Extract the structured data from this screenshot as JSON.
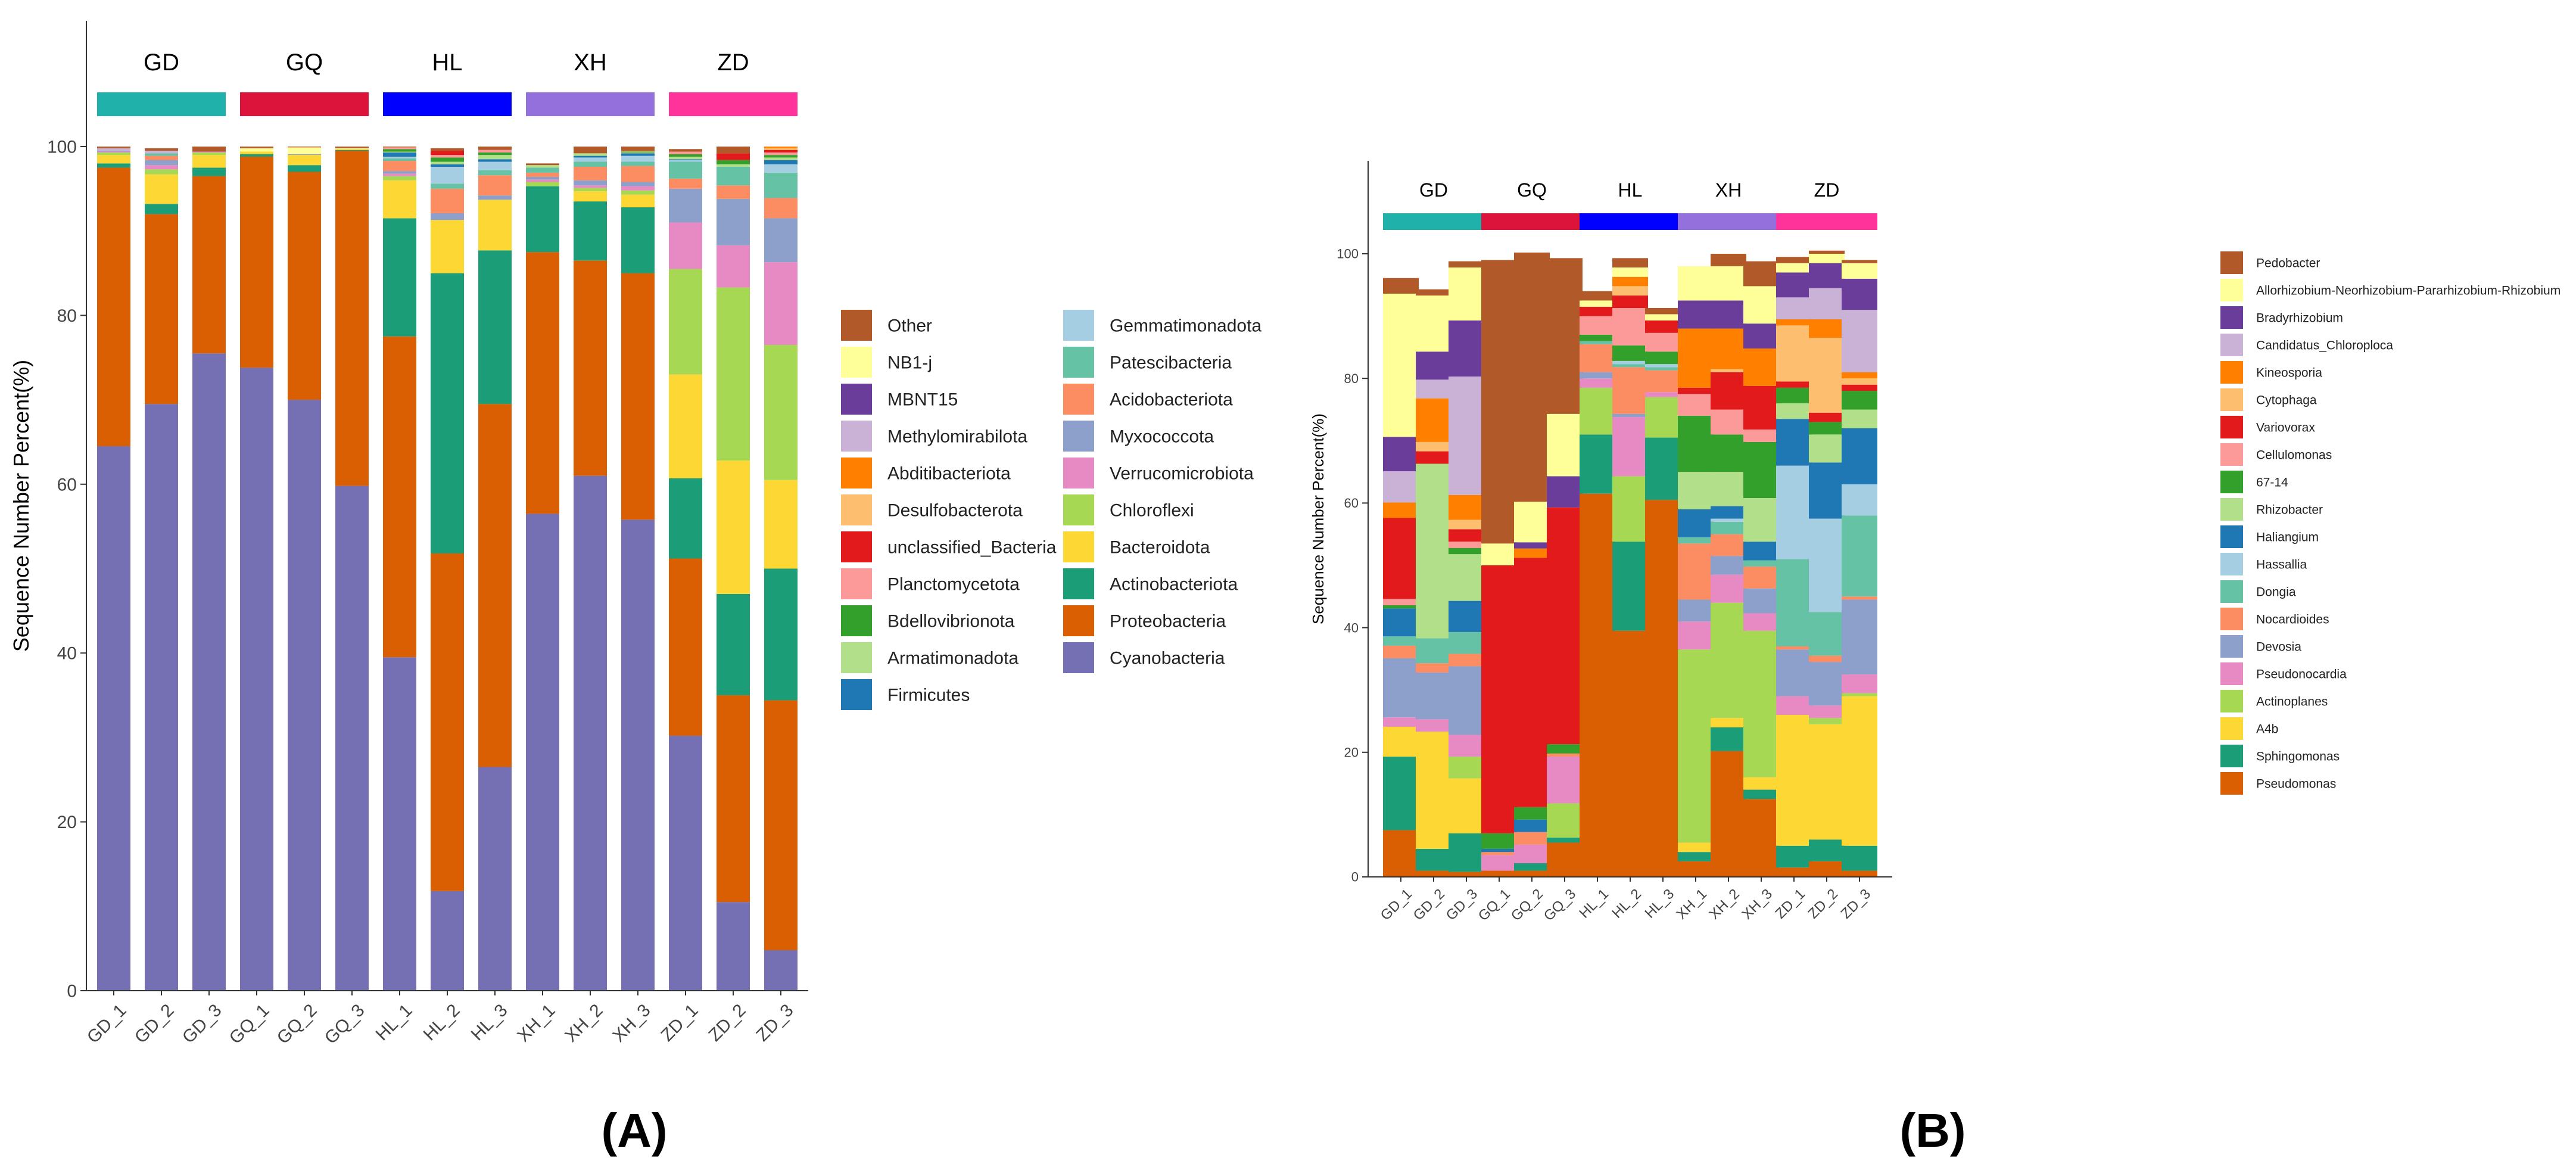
{
  "chart_data": [
    {
      "panel_label": "(A)",
      "type": "bar",
      "stacked": true,
      "ylabel": "Sequence Number Percent(%)",
      "xlabel": "",
      "ylim": [
        0,
        100
      ],
      "yticks": [
        0,
        20,
        40,
        60,
        80,
        100
      ],
      "categories": [
        "GD_1",
        "GD_2",
        "GD_3",
        "GQ_1",
        "GQ_2",
        "GQ_3",
        "HL_1",
        "HL_2",
        "HL_3",
        "XH_1",
        "XH_2",
        "XH_3",
        "ZD_1",
        "ZD_2",
        "ZD_3"
      ],
      "groups": [
        {
          "label": "GD",
          "color": "#20B2AA"
        },
        {
          "label": "GQ",
          "color": "#DC143C"
        },
        {
          "label": "HL",
          "color": "#0000FF"
        },
        {
          "label": "XH",
          "color": "#9370DB"
        },
        {
          "label": "ZD",
          "color": "#FF3399"
        }
      ],
      "stack_order_bottom_to_top": [
        "Cyanobacteria",
        "Proteobacteria",
        "Actinobacteriota",
        "Bacteroidota",
        "Chloroflexi",
        "Verrucomicrobiota",
        "Myxococcota",
        "Acidobacteriota",
        "Patescibacteria",
        "Gemmatimonadota",
        "Firmicutes",
        "Armatimonadota",
        "Bdellovibrionota",
        "Planctomycetota",
        "unclassified_Bacteria",
        "Desulfobacterota",
        "Abditibacteriota",
        "Methylomirabilota",
        "MBNT15",
        "NB1-j",
        "Other"
      ],
      "legend_columns": [
        [
          "Other",
          "NB1-j",
          "MBNT15",
          "Methylomirabilota",
          "Abditibacteriota",
          "Desulfobacterota",
          "unclassified_Bacteria",
          "Planctomycetota",
          "Bdellovibrionota",
          "Armatimonadota",
          "Firmicutes"
        ],
        [
          "Gemmatimonadota",
          "Patescibacteria",
          "Acidobacteriota",
          "Myxococcota",
          "Verrucomicrobiota",
          "Chloroflexi",
          "Bacteroidota",
          "Actinobacteriota",
          "Proteobacteria",
          "Cyanobacteria"
        ]
      ],
      "colors": {
        "Cyanobacteria": "#7570B3",
        "Proteobacteria": "#D95F02",
        "Actinobacteriota": "#1B9E77",
        "Bacteroidota": "#FDD835",
        "Chloroflexi": "#A6D854",
        "Verrucomicrobiota": "#E78AC3",
        "Myxococcota": "#8DA0CB",
        "Acidobacteriota": "#FC8D62",
        "Patescibacteria": "#66C2A5",
        "Gemmatimonadota": "#A6CEE3",
        "Firmicutes": "#1F78B4",
        "Armatimonadota": "#B2DF8A",
        "Bdellovibrionota": "#33A02C",
        "Planctomycetota": "#FB9A99",
        "unclassified_Bacteria": "#E31A1C",
        "Desulfobacterota": "#FDBF6F",
        "Abditibacteriota": "#FF7F00",
        "Methylomirabilota": "#CAB2D6",
        "MBNT15": "#6A3D9A",
        "NB1-j": "#FFFF99",
        "Other": "#B15928"
      },
      "series": [
        {
          "name": "Cyanobacteria",
          "values": [
            64.5,
            69.5,
            75.5,
            73.8,
            70,
            59.8,
            39.5,
            11.8,
            26.5,
            56.5,
            61,
            55.8,
            30.2,
            10.5,
            4.8
          ]
        },
        {
          "name": "Proteobacteria",
          "values": [
            33,
            22.5,
            21,
            25,
            27,
            39.7,
            38,
            40,
            43,
            31,
            25.5,
            29.2,
            21,
            24.5,
            29.6
          ]
        },
        {
          "name": "Actinobacteriota",
          "values": [
            0.5,
            1.2,
            1,
            0.3,
            0.8,
            0.1,
            14,
            33.2,
            18.2,
            7.8,
            7,
            7.8,
            9.5,
            12,
            15.6
          ]
        },
        {
          "name": "Bacteroidota",
          "values": [
            1,
            3.5,
            1.5,
            0.3,
            1.2,
            0.1,
            4.5,
            6.3,
            6,
            0,
            1.2,
            1.5,
            12.3,
            15.8,
            10.5
          ]
        },
        {
          "name": "Chloroflexi",
          "values": [
            0.3,
            0.6,
            0.3,
            0,
            0,
            0,
            0.5,
            0,
            0,
            0.5,
            0.4,
            0.5,
            12.5,
            20.5,
            16
          ]
        },
        {
          "name": "Verrucomicrobiota",
          "values": [
            0.1,
            0.5,
            0.1,
            0,
            0,
            0,
            0.3,
            0,
            0,
            0.3,
            0.3,
            0.5,
            5.5,
            5,
            9.8
          ]
        },
        {
          "name": "Myxococcota",
          "values": [
            0.1,
            0.6,
            0,
            0,
            0.1,
            0,
            0.3,
            0.8,
            0.5,
            0.3,
            0.6,
            0.5,
            4,
            5.5,
            5.2
          ]
        },
        {
          "name": "Acidobacteriota",
          "values": [
            0,
            0.5,
            0,
            0,
            0,
            0,
            1.2,
            2.9,
            2.4,
            0.5,
            1.6,
            1.9,
            1.2,
            1.6,
            2.4
          ]
        },
        {
          "name": "Patescibacteria",
          "values": [
            0,
            0.3,
            0,
            0,
            0,
            0,
            0.3,
            0.6,
            0.6,
            0.6,
            0.6,
            0.5,
            2,
            2.2,
            3
          ]
        },
        {
          "name": "Gemmatimonadota",
          "values": [
            0,
            0,
            0,
            0,
            0,
            0,
            0.2,
            2,
            1,
            0,
            0.5,
            0.7,
            0.2,
            0,
            1
          ]
        },
        {
          "name": "Firmicutes",
          "values": [
            0,
            0,
            0,
            0,
            0,
            0,
            0.5,
            0.3,
            0.3,
            0,
            0.2,
            0.3,
            0.1,
            0,
            0.5
          ]
        },
        {
          "name": "Armatimonadota",
          "values": [
            0,
            0,
            0,
            0,
            0,
            0,
            0.1,
            0.3,
            0.5,
            0.3,
            0.3,
            0.1,
            0.3,
            0.3,
            0.3
          ]
        },
        {
          "name": "Bdellovibrionota",
          "values": [
            0,
            0,
            0,
            0,
            0,
            0,
            0.3,
            0.5,
            0.3,
            0,
            0,
            0.1,
            0.3,
            0.5,
            0.3
          ]
        },
        {
          "name": "Planctomycetota",
          "values": [
            0,
            0,
            0,
            0,
            0,
            0,
            0.2,
            0.3,
            0.3,
            0,
            0,
            0,
            0.3,
            0,
            0.3
          ]
        },
        {
          "name": "unclassified_Bacteria",
          "values": [
            0,
            0,
            0,
            0,
            0,
            0,
            0,
            0.5,
            0,
            0,
            0,
            0,
            0,
            0.8,
            0.3
          ]
        },
        {
          "name": "Desulfobacterota",
          "values": [
            0,
            0,
            0,
            0,
            0,
            0,
            0,
            0,
            0,
            0,
            0,
            0.1,
            0,
            0,
            0.2
          ]
        },
        {
          "name": "Abditibacteriota",
          "values": [
            0,
            0,
            0,
            0,
            0,
            0,
            0,
            0,
            0,
            0,
            0,
            0,
            0,
            0,
            0.2
          ]
        },
        {
          "name": "Methylomirabilota",
          "values": [
            0.3,
            0.3,
            0,
            0,
            0,
            0,
            0,
            0,
            0,
            0,
            0,
            0,
            0,
            0,
            0
          ]
        },
        {
          "name": "MBNT15",
          "values": [
            0,
            0,
            0,
            0,
            0,
            0,
            0,
            0,
            0,
            0,
            0,
            0,
            0,
            0,
            0
          ]
        },
        {
          "name": "NB1-j",
          "values": [
            0,
            0,
            0,
            0.4,
            0.8,
            0.1,
            0,
            0,
            0,
            0,
            0,
            0,
            0,
            0,
            0
          ]
        },
        {
          "name": "Other",
          "values": [
            0.2,
            0.3,
            0.6,
            0.2,
            0.1,
            0.2,
            0.1,
            0.3,
            0.4,
            0.2,
            0.8,
            0.5,
            0.3,
            0.8,
            0
          ]
        }
      ]
    },
    {
      "panel_label": "(B)",
      "type": "bar",
      "stacked": true,
      "ylabel": "Sequence Number Percent(%)",
      "xlabel": "",
      "ylim": [
        0,
        100
      ],
      "yticks": [
        0,
        20,
        40,
        60,
        80,
        100
      ],
      "categories": [
        "GD_1",
        "GD_2",
        "GD_3",
        "GQ_1",
        "GQ_2",
        "GQ_3",
        "HL_1",
        "HL_2",
        "HL_3",
        "XH_1",
        "XH_2",
        "XH_3",
        "ZD_1",
        "ZD_2",
        "ZD_3"
      ],
      "groups": [
        {
          "label": "GD",
          "color": "#20B2AA"
        },
        {
          "label": "GQ",
          "color": "#DC143C"
        },
        {
          "label": "HL",
          "color": "#0000FF"
        },
        {
          "label": "XH",
          "color": "#9370DB"
        },
        {
          "label": "ZD",
          "color": "#FF3399"
        }
      ],
      "stack_order_bottom_to_top": [
        "Pseudomonas",
        "Sphingomonas",
        "A4b",
        "Actinoplanes",
        "Pseudonocardia",
        "Devosia",
        "Nocardioides",
        "Dongia",
        "Hassallia",
        "Haliangium",
        "Rhizobacter",
        "67-14",
        "Cellulomonas",
        "Variovorax",
        "Cytophaga",
        "Kineosporia",
        "Candidatus_Chloroploca",
        "Bradyrhizobium",
        "Allorhizobium-Neorhizobium-Pararhizobium-Rhizobium",
        "Pedobacter"
      ],
      "legend_columns": [
        [
          "Pedobacter",
          "Allorhizobium-Neorhizobium-Pararhizobium-Rhizobium",
          "Bradyrhizobium",
          "Candidatus_Chloroploca",
          "Kineosporia",
          "Cytophaga",
          "Variovorax",
          "Cellulomonas",
          "67-14",
          "Rhizobacter",
          "Haliangium",
          "Hassallia",
          "Dongia",
          "Nocardioides",
          "Devosia",
          "Pseudonocardia",
          "Actinoplanes",
          "A4b",
          "Sphingomonas",
          "Pseudomonas"
        ]
      ],
      "colors": {
        "Pseudomonas": "#D95F02",
        "Sphingomonas": "#1B9E77",
        "A4b": "#FDD835",
        "Actinoplanes": "#A6D854",
        "Pseudonocardia": "#E78AC3",
        "Devosia": "#8DA0CB",
        "Nocardioides": "#FC8D62",
        "Dongia": "#66C2A5",
        "Hassallia": "#A6CEE3",
        "Haliangium": "#1F78B4",
        "Rhizobacter": "#B2DF8A",
        "67-14": "#33A02C",
        "Cellulomonas": "#FB9A99",
        "Variovorax": "#E31A1C",
        "Cytophaga": "#FDBF6F",
        "Kineosporia": "#FF7F00",
        "Candidatus_Chloroploca": "#CAB2D6",
        "Bradyrhizobium": "#6A3D9A",
        "Allorhizobium-Neorhizobium-Pararhizobium-Rhizobium": "#FFFF99",
        "Pedobacter": "#B15928"
      },
      "series": [
        {
          "name": "Pseudomonas",
          "values": [
            7.5,
            1,
            0.8,
            1,
            1,
            5.5,
            61.5,
            39.5,
            60.5,
            2.5,
            20.2,
            12.5,
            1.5,
            2.5,
            1
          ]
        },
        {
          "name": "Sphingomonas",
          "values": [
            11.8,
            3.5,
            6.2,
            0,
            1.2,
            0.8,
            9.5,
            14.3,
            10,
            1.5,
            3.8,
            1.5,
            3.5,
            3.5,
            4
          ]
        },
        {
          "name": "A4b",
          "values": [
            4.8,
            18.8,
            8.8,
            0,
            0,
            0,
            0,
            0,
            0,
            1.5,
            1.5,
            2,
            21,
            18.5,
            24
          ]
        },
        {
          "name": "Actinoplanes",
          "values": [
            0,
            0,
            3.5,
            0,
            0,
            5.5,
            7.5,
            10.5,
            6.5,
            31,
            18.5,
            23.5,
            0,
            1,
            0.5
          ]
        },
        {
          "name": "Pseudonocardia",
          "values": [
            1.5,
            2,
            3.5,
            2.5,
            3,
            7.5,
            1.5,
            9.5,
            0.8,
            4.5,
            4.5,
            2.8,
            3,
            2,
            3
          ]
        },
        {
          "name": "Devosia",
          "values": [
            9.5,
            7.5,
            11,
            0,
            0,
            0,
            1,
            0.5,
            0,
            3.5,
            3,
            4,
            7.5,
            7,
            12
          ]
        },
        {
          "name": "Nocardioides",
          "values": [
            2,
            1.5,
            2,
            0.5,
            2,
            0.5,
            4.5,
            7.5,
            3.5,
            9,
            3.5,
            3.5,
            0.5,
            1,
            0.5
          ]
        },
        {
          "name": "Dongia",
          "values": [
            1.5,
            4,
            3.5,
            0,
            0,
            0,
            0.5,
            0.5,
            0.5,
            1,
            2,
            1,
            14,
            7,
            13
          ]
        },
        {
          "name": "Hassallia",
          "values": [
            0,
            0,
            0,
            0,
            0,
            0,
            0,
            0.5,
            0.5,
            0,
            0.5,
            0,
            15,
            15,
            5
          ]
        },
        {
          "name": "Haliangium",
          "values": [
            4.5,
            0,
            5,
            0.5,
            2,
            0,
            0,
            0,
            0,
            4.5,
            2,
            3,
            7.5,
            9,
            9
          ]
        },
        {
          "name": "Rhizobacter",
          "values": [
            0,
            28,
            7.5,
            0,
            0,
            0,
            0,
            0,
            0,
            6,
            5.5,
            7,
            2.5,
            4.5,
            3
          ]
        },
        {
          "name": "67-14",
          "values": [
            0.5,
            0,
            1,
            2.5,
            2,
            1.5,
            1,
            2.5,
            2,
            9,
            6,
            9,
            2.5,
            2,
            3
          ]
        },
        {
          "name": "Cellulomonas",
          "values": [
            1,
            0,
            1,
            0,
            0,
            0,
            3,
            6,
            3,
            3.5,
            4,
            2,
            0,
            0,
            0
          ]
        },
        {
          "name": "Variovorax",
          "values": [
            13,
            2,
            2,
            43,
            40,
            38,
            1.5,
            2,
            2,
            1,
            6,
            7,
            1,
            1.5,
            1
          ]
        },
        {
          "name": "Cytophaga",
          "values": [
            0,
            1.5,
            1.5,
            0,
            0,
            0,
            0,
            1.5,
            0,
            0,
            0.5,
            0,
            9,
            12,
            1
          ]
        },
        {
          "name": "Kineosporia",
          "values": [
            2.5,
            7,
            4,
            0,
            1.5,
            0,
            0,
            1.5,
            0,
            9.5,
            6.5,
            6,
            1,
            3,
            1
          ]
        },
        {
          "name": "Candidatus_Chloroploca",
          "values": [
            5,
            3,
            19,
            0,
            0,
            0,
            0,
            0,
            0,
            0,
            0,
            0,
            3.5,
            5,
            10
          ]
        },
        {
          "name": "Bradyrhizobium",
          "values": [
            5.5,
            4.5,
            9,
            0,
            1,
            5,
            0,
            0,
            0,
            4.5,
            4.5,
            4,
            4,
            4,
            5
          ]
        },
        {
          "name": "Allorhizobium-Neorhizobium-Pararhizobium-Rhizobium",
          "values": [
            23,
            9,
            8.5,
            3.5,
            6.5,
            10,
            1,
            1.5,
            1,
            5.5,
            5.5,
            6,
            1.5,
            1.5,
            2.5
          ]
        },
        {
          "name": "Pedobacter",
          "values": [
            2.5,
            1,
            1,
            45.5,
            40,
            25,
            1.5,
            1.5,
            1,
            0,
            2,
            4,
            1,
            0.5,
            0.5
          ]
        }
      ]
    }
  ]
}
